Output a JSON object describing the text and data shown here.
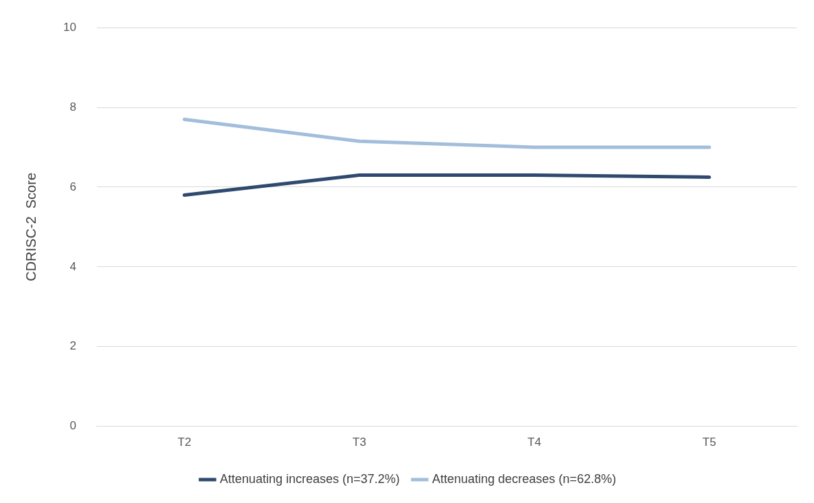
{
  "chart_data": {
    "type": "line",
    "ylabel": "CDRISC-2  Score",
    "categories": [
      "T2",
      "T3",
      "T4",
      "T5"
    ],
    "series": [
      {
        "name": "Attenuating increases (n=37.2%)",
        "color": "#2f4a6e",
        "values": [
          5.8,
          6.3,
          6.3,
          6.25
        ]
      },
      {
        "name": "Attenuating decreases (n=62.8%)",
        "color": "#a3bedb",
        "values": [
          7.7,
          7.15,
          7.0,
          7.0
        ]
      }
    ],
    "ylim": [
      0,
      10
    ],
    "yticks": [
      0,
      2,
      4,
      6,
      8,
      10
    ],
    "grid": "y",
    "legend": "bottom",
    "marker": "none",
    "line_style": "solid"
  }
}
